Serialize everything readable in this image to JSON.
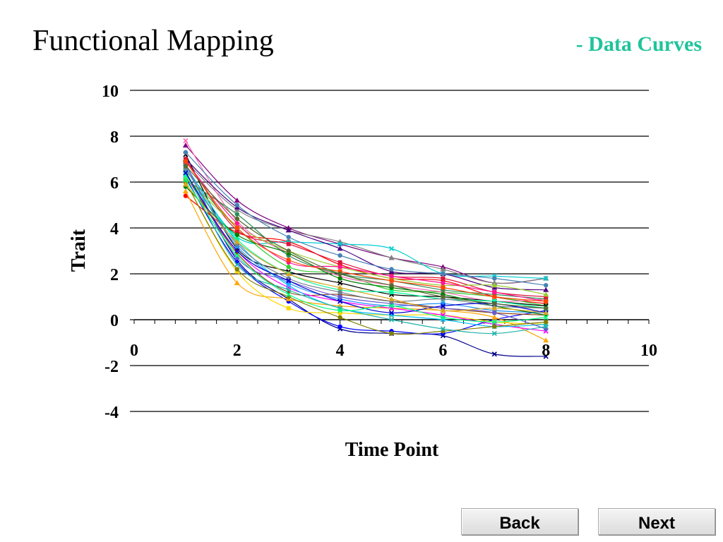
{
  "slide": {
    "title": "Functional Mapping",
    "subtitle": "- Data Curves",
    "subtitle_color": "#1fc49a"
  },
  "nav": {
    "back_label": "Back",
    "next_label": "Next"
  },
  "chart_data": {
    "type": "line",
    "title": "",
    "xlabel": "Time Point",
    "ylabel": "Trait",
    "xlim": [
      0,
      10
    ],
    "ylim": [
      -4,
      10
    ],
    "x_ticks": [
      0,
      2,
      4,
      6,
      8,
      10
    ],
    "y_ticks": [
      -4,
      -2,
      0,
      2,
      4,
      6,
      8,
      10
    ],
    "x_tick_labels": [
      "0",
      "2",
      "4",
      "6",
      "8",
      "10"
    ],
    "y_tick_labels": [
      "-4",
      "-2",
      "0",
      "2",
      "4",
      "6",
      "8",
      "10"
    ],
    "grid": "horizontal",
    "legend": "none",
    "x": [
      1,
      2,
      3,
      4,
      5,
      6,
      7,
      8
    ],
    "series": [
      {
        "color": "#00008b",
        "marker": "star",
        "values": [
          6.8,
          2.6,
          0.9,
          -0.4,
          -0.6,
          -0.7,
          -1.5,
          -1.6
        ]
      },
      {
        "color": "#0000ff",
        "marker": "circle",
        "values": [
          6.2,
          2.5,
          0.8,
          -0.3,
          -0.5,
          -0.6,
          0.0,
          0.4
        ]
      },
      {
        "color": "#ff0000",
        "marker": "circle",
        "values": [
          5.4,
          3.8,
          3.4,
          2.4,
          1.8,
          1.7,
          1.0,
          0.7
        ]
      },
      {
        "color": "#800080",
        "marker": "triangle",
        "values": [
          7.6,
          5.2,
          4.0,
          3.3,
          2.7,
          2.3,
          1.6,
          1.8
        ]
      },
      {
        "color": "#808080",
        "marker": "triangle",
        "values": [
          6.9,
          4.8,
          3.9,
          3.4,
          2.7,
          2.2,
          1.6,
          1.8
        ]
      },
      {
        "color": "#ffa500",
        "marker": "triangle",
        "values": [
          5.6,
          1.6,
          0.9,
          0.6,
          0.5,
          0.4,
          0.1,
          -0.9
        ]
      },
      {
        "color": "#ffd700",
        "marker": "square",
        "values": [
          6.0,
          2.1,
          0.5,
          0.3,
          0.2,
          0.2,
          -0.1,
          -0.2
        ]
      },
      {
        "color": "#00ced1",
        "marker": "star",
        "values": [
          6.7,
          3.6,
          3.4,
          3.3,
          3.1,
          2.0,
          1.9,
          1.8
        ]
      },
      {
        "color": "#32cd32",
        "marker": "circle",
        "values": [
          6.5,
          4.0,
          2.3,
          2.0,
          1.3,
          1.2,
          1.0,
          0.6
        ]
      },
      {
        "color": "#ff69b4",
        "marker": "x",
        "values": [
          7.8,
          4.3,
          2.9,
          1.9,
          1.5,
          1.2,
          0.8,
          0.9
        ]
      },
      {
        "color": "#000000",
        "marker": "star",
        "values": [
          7.2,
          3.1,
          2.1,
          1.6,
          1.1,
          1.0,
          0.8,
          0.6
        ]
      },
      {
        "color": "#1e90ff",
        "marker": "square",
        "values": [
          6.6,
          3.2,
          1.6,
          0.9,
          0.6,
          0.7,
          0.4,
          0.3
        ]
      },
      {
        "color": "#8b4513",
        "marker": "circle",
        "values": [
          6.3,
          2.9,
          1.2,
          1.1,
          0.8,
          0.5,
          0.3,
          0.2
        ]
      },
      {
        "color": "#2e8b57",
        "marker": "circle",
        "values": [
          6.1,
          4.6,
          2.8,
          2.0,
          1.7,
          1.3,
          1.1,
          0.9
        ]
      },
      {
        "color": "#ff00ff",
        "marker": "x",
        "values": [
          6.4,
          3.0,
          1.4,
          0.8,
          0.5,
          0.2,
          -0.2,
          -0.5
        ]
      },
      {
        "color": "#4b0082",
        "marker": "triangle",
        "values": [
          7.0,
          4.9,
          3.9,
          3.1,
          2.1,
          2.0,
          1.4,
          1.3
        ]
      },
      {
        "color": "#00bfff",
        "marker": "x",
        "values": [
          6.7,
          3.4,
          1.5,
          0.5,
          0.2,
          0.0,
          -0.3,
          -0.2
        ]
      },
      {
        "color": "#dc143c",
        "marker": "square",
        "values": [
          7.0,
          3.9,
          3.3,
          2.5,
          1.9,
          1.8,
          1.2,
          1.0
        ]
      },
      {
        "color": "#008000",
        "marker": "circle",
        "values": [
          5.8,
          3.7,
          2.9,
          1.8,
          1.4,
          1.1,
          0.6,
          0.2
        ]
      },
      {
        "color": "#9acd32",
        "marker": "triangle",
        "values": [
          6.2,
          4.1,
          3.0,
          2.3,
          1.8,
          1.5,
          1.5,
          1.1
        ]
      },
      {
        "color": "#6a5acd",
        "marker": "circle",
        "values": [
          6.8,
          2.7,
          1.7,
          1.0,
          0.7,
          0.5,
          0.3,
          -0.4
        ]
      },
      {
        "color": "#808000",
        "marker": "circle",
        "values": [
          6.0,
          2.2,
          1.0,
          0.1,
          -0.6,
          -0.5,
          -0.3,
          -0.1
        ]
      },
      {
        "color": "#00fa9a",
        "marker": "square",
        "values": [
          6.3,
          3.5,
          2.0,
          1.3,
          1.2,
          0.9,
          0.8,
          0.5
        ]
      },
      {
        "color": "#ff1493",
        "marker": "circle",
        "values": [
          6.9,
          4.2,
          2.5,
          2.3,
          1.9,
          1.6,
          1.2,
          0.8
        ]
      },
      {
        "color": "#20b2aa",
        "marker": "x",
        "values": [
          6.5,
          2.4,
          1.3,
          0.5,
          0.0,
          -0.4,
          -0.6,
          -0.3
        ]
      },
      {
        "color": "#708090",
        "marker": "circle",
        "values": [
          6.6,
          3.3,
          1.8,
          1.2,
          0.8,
          0.9,
          0.6,
          0.5
        ]
      },
      {
        "color": "#0000cd",
        "marker": "star",
        "values": [
          6.4,
          3.0,
          1.7,
          0.8,
          0.3,
          0.6,
          0.7,
          0.3
        ]
      },
      {
        "color": "#daa520",
        "marker": "triangle",
        "values": [
          5.9,
          3.4,
          2.0,
          1.4,
          0.9,
          0.4,
          0.5,
          0.3
        ]
      },
      {
        "color": "#ff4500",
        "marker": "square",
        "values": [
          6.9,
          4.0,
          2.6,
          2.1,
          1.7,
          1.4,
          1.0,
          0.8
        ]
      },
      {
        "color": "#00ff7f",
        "marker": "x",
        "values": [
          6.1,
          2.8,
          1.1,
          0.4,
          0.6,
          0.1,
          -0.1,
          0.1
        ]
      },
      {
        "color": "#556b2f",
        "marker": "circle",
        "values": [
          6.7,
          4.4,
          3.0,
          2.0,
          1.5,
          1.0,
          0.7,
          0.5
        ]
      },
      {
        "color": "#4682b4",
        "marker": "circle",
        "values": [
          7.3,
          5.0,
          3.6,
          2.8,
          2.2,
          2.0,
          1.8,
          1.5
        ]
      }
    ]
  }
}
